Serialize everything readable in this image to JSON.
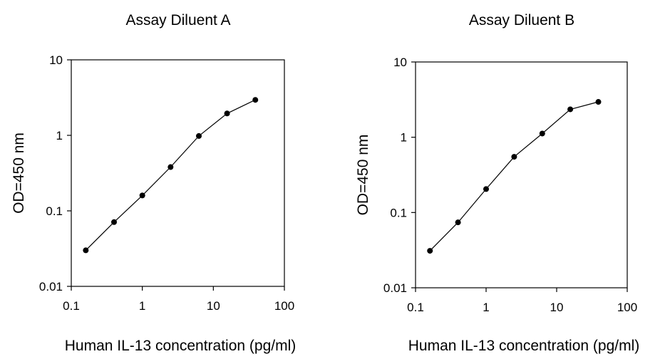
{
  "chart_data": [
    {
      "type": "line",
      "title": "Assay Diluent A",
      "xlabel": "Human IL-13 concentration (pg/ml)",
      "ylabel": "OD=450 nm",
      "x_scale": "log",
      "y_scale": "log",
      "xlim": [
        0.1,
        100
      ],
      "ylim": [
        0.01,
        10
      ],
      "x_ticks": [
        "0.1",
        "1",
        "10",
        "100"
      ],
      "y_ticks": [
        "10",
        "1",
        "0.1",
        "0.01"
      ],
      "grid": false,
      "x": [
        0.16,
        0.4,
        1.0,
        2.5,
        6.25,
        15.6,
        39
      ],
      "y": [
        0.03,
        0.071,
        0.16,
        0.38,
        0.98,
        1.95,
        2.95
      ]
    },
    {
      "type": "line",
      "title": "Assay Diluent B",
      "xlabel": "Human IL-13 concentration (pg/ml)",
      "ylabel": "OD=450 nm",
      "x_scale": "log",
      "y_scale": "log",
      "xlim": [
        0.1,
        100
      ],
      "ylim": [
        0.01,
        10
      ],
      "x_ticks": [
        "0.1",
        "1",
        "10",
        "100"
      ],
      "y_ticks": [
        "10",
        "1",
        "0.1",
        "0.01"
      ],
      "grid": false,
      "x": [
        0.16,
        0.4,
        1.0,
        2.5,
        6.25,
        15.6,
        39
      ],
      "y": [
        0.031,
        0.074,
        0.205,
        0.55,
        1.12,
        2.35,
        2.95
      ]
    }
  ]
}
